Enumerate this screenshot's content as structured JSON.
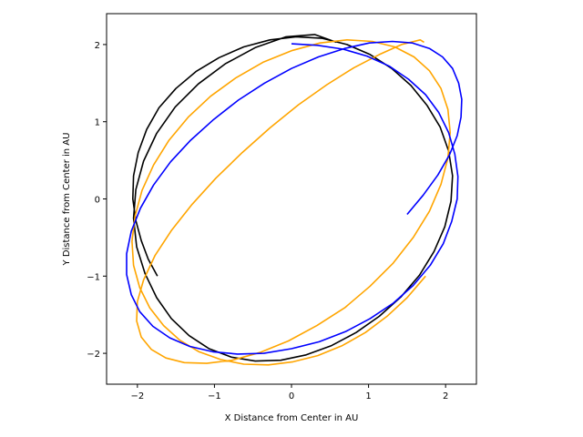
{
  "chart_data": {
    "type": "line",
    "title": "",
    "xlabel": "X Distance from Center in AU",
    "ylabel": "Y Distance from Center in AU",
    "xlim": [
      -2.4,
      2.4
    ],
    "ylim": [
      -2.4,
      2.4
    ],
    "xticks": [
      -2,
      -1,
      0,
      1,
      2
    ],
    "yticks": [
      -2,
      -1,
      0,
      1,
      2
    ],
    "xtick_labels": [
      "−2",
      "−1",
      "0",
      "1",
      "2"
    ],
    "ytick_labels": [
      "−2",
      "−1",
      "0",
      "1",
      "2"
    ],
    "grid": false,
    "legend": "none",
    "series": [
      {
        "color": "#000000",
        "x": [
          -1.74,
          -1.86,
          -1.95,
          -2.02,
          -2.06,
          -2.05,
          -1.99,
          -1.88,
          -1.72,
          -1.5,
          -1.24,
          -0.94,
          -0.62,
          -0.28,
          0.06,
          0.4,
          0.72,
          1.02,
          1.3,
          1.55,
          1.76,
          1.93,
          2.04,
          2.09,
          2.07,
          1.99,
          1.85,
          1.66,
          1.42,
          1.14,
          0.84,
          0.52,
          0.19,
          -0.14,
          -0.47,
          -0.78,
          -1.07,
          -1.33,
          -1.56,
          -1.75,
          -1.9,
          -2.01,
          -2.05,
          -2.02,
          -1.92,
          -1.75,
          -1.51,
          -1.21,
          -0.86,
          -0.47,
          -0.07,
          0.3,
          0.58
        ],
        "y": [
          -1.0,
          -0.78,
          -0.54,
          -0.28,
          0.0,
          0.3,
          0.6,
          0.9,
          1.18,
          1.43,
          1.65,
          1.83,
          1.97,
          2.06,
          2.1,
          2.08,
          2.0,
          1.87,
          1.69,
          1.47,
          1.21,
          0.93,
          0.62,
          0.3,
          -0.03,
          -0.36,
          -0.68,
          -0.99,
          -1.27,
          -1.52,
          -1.73,
          -1.9,
          -2.02,
          -2.09,
          -2.1,
          -2.05,
          -1.94,
          -1.77,
          -1.55,
          -1.28,
          -0.97,
          -0.62,
          -0.25,
          0.12,
          0.49,
          0.85,
          1.19,
          1.49,
          1.75,
          1.96,
          2.1,
          2.13,
          2.03
        ]
      },
      {
        "color": "#ffa500",
        "x": [
          1.74,
          1.5,
          1.24,
          0.96,
          0.66,
          0.34,
          0.02,
          -0.3,
          -0.62,
          -0.92,
          -1.2,
          -1.45,
          -1.66,
          -1.84,
          -1.97,
          -2.05,
          -2.07,
          -2.03,
          -1.94,
          -1.79,
          -1.59,
          -1.34,
          -1.05,
          -0.72,
          -0.37,
          0.0,
          0.37,
          0.72,
          1.05,
          1.34,
          1.59,
          1.79,
          1.94,
          2.03,
          2.06,
          2.03,
          1.94,
          1.79,
          1.58,
          1.32,
          1.02,
          0.69,
          0.33,
          -0.04,
          -0.41,
          -0.77,
          -1.1,
          -1.39,
          -1.63,
          -1.82,
          -1.95,
          -2.01,
          -2.0,
          -1.92,
          -1.77,
          -1.56,
          -1.29,
          -0.98,
          -0.64,
          -0.28,
          0.09,
          0.46,
          0.81,
          1.14,
          1.43,
          1.67,
          1.72
        ],
        "y": [
          -1.0,
          -1.28,
          -1.52,
          -1.73,
          -1.9,
          -2.03,
          -2.11,
          -2.15,
          -2.14,
          -2.08,
          -1.98,
          -1.83,
          -1.64,
          -1.41,
          -1.15,
          -0.86,
          -0.55,
          -0.22,
          0.11,
          0.44,
          0.76,
          1.06,
          1.33,
          1.57,
          1.77,
          1.92,
          2.02,
          2.06,
          2.04,
          1.97,
          1.84,
          1.66,
          1.43,
          1.16,
          0.86,
          0.53,
          0.19,
          -0.16,
          -0.5,
          -0.83,
          -1.13,
          -1.41,
          -1.64,
          -1.84,
          -1.99,
          -2.09,
          -2.13,
          -2.12,
          -2.06,
          -1.95,
          -1.79,
          -1.58,
          -1.33,
          -1.05,
          -0.73,
          -0.41,
          -0.07,
          0.27,
          0.6,
          0.92,
          1.22,
          1.48,
          1.7,
          1.87,
          2.0,
          2.06,
          2.03
        ]
      },
      {
        "color": "#0000ff",
        "x": [
          0.0,
          0.34,
          0.67,
          0.98,
          1.27,
          1.52,
          1.74,
          1.91,
          2.04,
          2.12,
          2.16,
          2.15,
          2.08,
          1.97,
          1.8,
          1.58,
          1.32,
          1.02,
          0.7,
          0.36,
          0.0,
          -0.36,
          -0.7,
          -1.02,
          -1.32,
          -1.58,
          -1.8,
          -1.97,
          -2.08,
          -2.14,
          -2.14,
          -2.08,
          -1.96,
          -1.79,
          -1.57,
          -1.31,
          -1.01,
          -0.69,
          -0.35,
          0.0,
          0.35,
          0.69,
          1.01,
          1.31,
          1.57,
          1.79,
          1.96,
          2.09,
          2.17,
          2.21,
          2.2,
          2.15,
          2.05,
          1.9,
          1.71,
          1.5
        ],
        "y": [
          2.01,
          1.99,
          1.94,
          1.85,
          1.72,
          1.55,
          1.35,
          1.12,
          0.86,
          0.58,
          0.29,
          0.0,
          -0.29,
          -0.58,
          -0.86,
          -1.12,
          -1.35,
          -1.55,
          -1.72,
          -1.85,
          -1.94,
          -2.0,
          -2.01,
          -1.98,
          -1.91,
          -1.8,
          -1.65,
          -1.46,
          -1.24,
          -0.98,
          -0.71,
          -0.42,
          -0.12,
          0.18,
          0.48,
          0.76,
          1.03,
          1.28,
          1.5,
          1.69,
          1.84,
          1.95,
          2.02,
          2.04,
          2.02,
          1.95,
          1.84,
          1.69,
          1.5,
          1.29,
          1.06,
          0.82,
          0.57,
          0.31,
          0.05,
          -0.2
        ]
      }
    ]
  }
}
